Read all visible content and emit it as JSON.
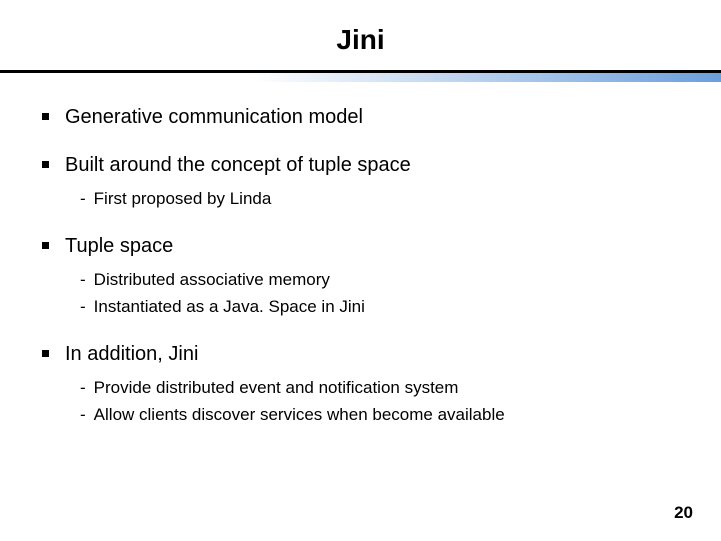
{
  "slide": {
    "title": "Jini",
    "page_number": "20",
    "title_fontsize": 28,
    "bullet_fontsize": 20,
    "sub_fontsize": 17,
    "text_color": "#000000",
    "background_color": "#ffffff",
    "divider": {
      "line_color": "#000000",
      "line_height": 3,
      "gradient_from": "#ffffff",
      "gradient_to": "#6a9edc",
      "gradient_height": 9
    },
    "bullets": [
      {
        "text": "Generative communication model",
        "sub": []
      },
      {
        "text": "Built around the concept of tuple space",
        "sub": [
          "First proposed by Linda"
        ]
      },
      {
        "text": "Tuple space",
        "sub": [
          "Distributed associative memory",
          "Instantiated as a Java. Space in Jini"
        ]
      },
      {
        "text": "In addition, Jini",
        "sub": [
          "Provide distributed event and notification system",
          "Allow clients discover services when become available"
        ]
      }
    ]
  }
}
